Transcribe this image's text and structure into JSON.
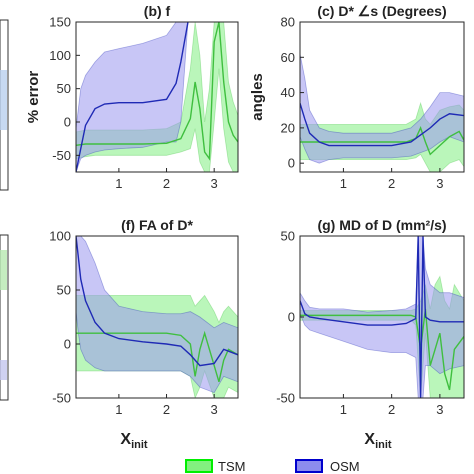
{
  "chart_data": [
    {
      "type": "line",
      "title": "(b) f",
      "ylabel": "% error",
      "xlabel": "",
      "xlim": [
        0.1,
        3.5
      ],
      "ylim": [
        -75,
        150
      ],
      "yticks": [
        -50,
        0,
        50,
        100,
        150
      ],
      "xticks": [
        1,
        2,
        3
      ],
      "series": [
        {
          "name": "OSM",
          "x": [
            0.1,
            0.2,
            0.3,
            0.5,
            0.7,
            1.0,
            1.5,
            2.0,
            2.2,
            2.3,
            2.4,
            2.45
          ],
          "y": [
            -75,
            -40,
            -5,
            20,
            27,
            29,
            29,
            34,
            58,
            90,
            130,
            150
          ],
          "lower": [
            -75,
            -55,
            -50,
            -45,
            -42,
            -40,
            -38,
            -30,
            -30,
            0,
            100,
            150
          ],
          "upper": [
            -10,
            50,
            70,
            90,
            105,
            110,
            118,
            130,
            150,
            150,
            150,
            150
          ]
        },
        {
          "name": "TSM",
          "x": [
            0.1,
            0.3,
            0.5,
            1.0,
            1.5,
            2.0,
            2.3,
            2.5,
            2.6,
            2.7,
            2.8,
            2.9,
            3.0,
            3.1,
            3.2,
            3.3,
            3.4,
            3.5
          ],
          "y": [
            -35,
            -33,
            -33,
            -33,
            -33,
            -32,
            -25,
            5,
            60,
            20,
            -45,
            -55,
            120,
            150,
            60,
            0,
            -20,
            -30
          ],
          "lower": [
            -55,
            -52,
            -50,
            -50,
            -50,
            -50,
            -45,
            -40,
            -10,
            -60,
            -75,
            -75,
            0,
            80,
            -10,
            -60,
            -75,
            -75
          ],
          "upper": [
            -15,
            -12,
            -12,
            -12,
            -12,
            -10,
            0,
            80,
            150,
            100,
            0,
            50,
            150,
            150,
            150,
            60,
            30,
            10
          ]
        }
      ]
    },
    {
      "type": "line",
      "title": "(c) D* ∠s (Degrees)",
      "ylabel": "angles",
      "xlabel": "",
      "xlim": [
        0.1,
        3.5
      ],
      "ylim": [
        -5,
        80
      ],
      "yticks": [
        0,
        20,
        40,
        60,
        80
      ],
      "xticks": [
        1,
        2,
        3
      ],
      "series": [
        {
          "name": "OSM",
          "x": [
            0.1,
            0.2,
            0.3,
            0.5,
            0.7,
            1.0,
            1.5,
            2.0,
            2.4,
            2.6,
            2.8,
            3.0,
            3.2,
            3.5
          ],
          "y": [
            34,
            25,
            17,
            12,
            10,
            10,
            10,
            10,
            12,
            16,
            20,
            25,
            28,
            27
          ],
          "lower": [
            15,
            8,
            2,
            0,
            2,
            3,
            3,
            3,
            4,
            6,
            8,
            12,
            15,
            12
          ],
          "upper": [
            62,
            48,
            30,
            20,
            18,
            17,
            17,
            17,
            20,
            25,
            32,
            40,
            40,
            38
          ]
        },
        {
          "name": "TSM",
          "x": [
            0.1,
            0.5,
            1.0,
            1.5,
            2.0,
            2.3,
            2.5,
            2.6,
            2.7,
            2.8,
            3.0,
            3.2,
            3.4,
            3.5
          ],
          "y": [
            12,
            12,
            12,
            12,
            12,
            12,
            14,
            20,
            12,
            5,
            10,
            15,
            18,
            13
          ],
          "lower": [
            2,
            2,
            2,
            2,
            2,
            2,
            3,
            5,
            0,
            -5,
            -5,
            0,
            2,
            -2
          ],
          "upper": [
            22,
            22,
            22,
            22,
            22,
            22,
            25,
            34,
            25,
            22,
            30,
            32,
            33,
            30
          ]
        }
      ]
    },
    {
      "type": "line",
      "title": "(f) FA of D*",
      "ylabel": "",
      "xlabel": "",
      "xlim": [
        0.1,
        3.5
      ],
      "ylim": [
        -50,
        100
      ],
      "yticks": [
        -50,
        0,
        50,
        100
      ],
      "xticks": [
        1,
        2,
        3
      ],
      "series": [
        {
          "name": "OSM",
          "x": [
            0.1,
            0.15,
            0.2,
            0.3,
            0.5,
            0.7,
            1.0,
            1.5,
            2.0,
            2.3,
            2.5,
            2.7,
            3.0,
            3.2,
            3.5
          ],
          "y": [
            100,
            80,
            60,
            40,
            20,
            10,
            5,
            2,
            0,
            -2,
            -10,
            -20,
            -18,
            -5,
            -10
          ],
          "lower": [
            30,
            10,
            -5,
            -15,
            -22,
            -25,
            -25,
            -25,
            -25,
            -25,
            -30,
            -40,
            -45,
            -30,
            -35
          ],
          "upper": [
            100,
            100,
            100,
            95,
            75,
            50,
            35,
            30,
            28,
            28,
            30,
            25,
            15,
            20,
            15
          ]
        },
        {
          "name": "TSM",
          "x": [
            0.1,
            0.5,
            1.0,
            1.5,
            2.0,
            2.3,
            2.5,
            2.6,
            2.7,
            2.8,
            3.0,
            3.1,
            3.2,
            3.3,
            3.5
          ],
          "y": [
            10,
            10,
            10,
            10,
            10,
            8,
            0,
            -30,
            -5,
            10,
            -20,
            -35,
            -15,
            -5,
            -10
          ],
          "lower": [
            -25,
            -25,
            -25,
            -25,
            -25,
            -25,
            -30,
            -50,
            -40,
            -25,
            -50,
            -50,
            -50,
            -40,
            -45
          ],
          "upper": [
            45,
            45,
            45,
            45,
            45,
            45,
            45,
            35,
            40,
            45,
            30,
            20,
            30,
            35,
            25
          ]
        }
      ]
    },
    {
      "type": "line",
      "title": "(g) MD of D (mm²/s)",
      "ylabel": "",
      "xlabel": "",
      "xlim": [
        0.1,
        3.5
      ],
      "ylim": [
        -50,
        50
      ],
      "yticks": [
        -50,
        0,
        50
      ],
      "xticks": [
        1,
        2,
        3
      ],
      "series": [
        {
          "name": "OSM",
          "x": [
            0.1,
            0.2,
            0.3,
            0.5,
            1.0,
            1.5,
            2.0,
            2.3,
            2.5,
            2.55,
            2.6,
            2.65,
            2.7,
            2.8,
            3.0,
            3.2,
            3.5
          ],
          "y": [
            10,
            2,
            0,
            -1,
            -3,
            -5,
            -5,
            -4,
            -1,
            50,
            -50,
            50,
            0,
            -2,
            -3,
            -3,
            -3
          ],
          "lower": [
            2,
            -5,
            -8,
            -10,
            -15,
            -20,
            -22,
            -22,
            -25,
            -50,
            -50,
            -50,
            -30,
            -30,
            -35,
            -32,
            -30
          ],
          "upper": [
            15,
            10,
            6,
            5,
            5,
            3,
            4,
            5,
            8,
            50,
            50,
            50,
            30,
            20,
            15,
            15,
            12
          ]
        },
        {
          "name": "TSM",
          "x": [
            0.1,
            0.5,
            1.0,
            1.5,
            2.0,
            2.4,
            2.5,
            2.6,
            2.7,
            2.8,
            2.9,
            3.0,
            3.1,
            3.2,
            3.3,
            3.5
          ],
          "y": [
            1,
            1,
            1,
            1,
            1,
            1,
            0,
            -20,
            5,
            -30,
            -20,
            -10,
            -35,
            -45,
            -20,
            -12
          ],
          "lower": [
            -2,
            -2,
            -2,
            -2,
            -2,
            -2,
            -5,
            -50,
            -10,
            -50,
            -50,
            -50,
            -50,
            -50,
            -50,
            -50
          ],
          "upper": [
            4,
            4,
            4,
            4,
            4,
            4,
            5,
            10,
            20,
            5,
            20,
            25,
            10,
            5,
            20,
            10
          ]
        }
      ]
    }
  ],
  "shared": {
    "xlabel_main": "X",
    "xlabel_sub": "init",
    "legend": [
      {
        "name": "TSM",
        "color": "#00ee00",
        "fill": "#82f07f"
      },
      {
        "name": "OSM",
        "color": "#0000cc",
        "fill": "#8c8cee"
      }
    ],
    "colors": {
      "TSM_line": "#3fbf3f",
      "TSM_fill": "#8cf08c",
      "OSM_line": "#1f2ab5",
      "OSM_fill": "#9a98ee"
    }
  }
}
